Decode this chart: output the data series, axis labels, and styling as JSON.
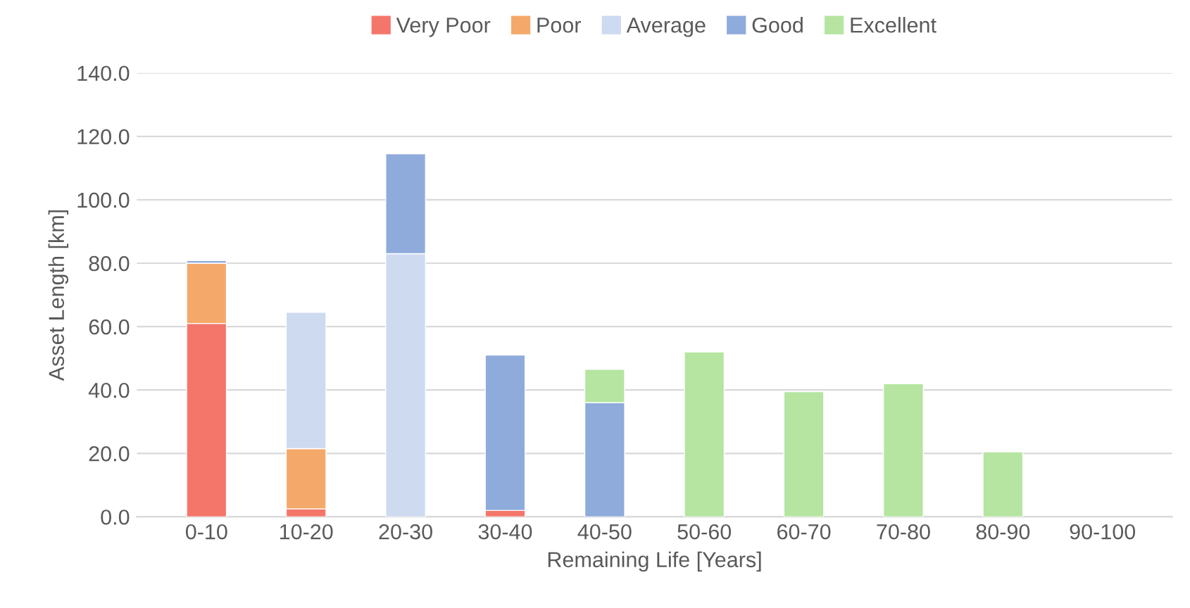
{
  "chart_data": {
    "type": "bar",
    "stacked": true,
    "xlabel": "Remaining Life [Years]",
    "ylabel": "Asset Length [km]",
    "categories": [
      "0-10",
      "10-20",
      "20-30",
      "30-40",
      "40-50",
      "50-60",
      "60-70",
      "70-80",
      "80-90",
      "90-100"
    ],
    "series": [
      {
        "name": "Very Poor",
        "color": "#f4766a",
        "values": [
          61,
          2.5,
          null,
          2,
          null,
          null,
          null,
          null,
          null,
          null
        ]
      },
      {
        "name": "Poor",
        "color": "#f4a96a",
        "values": [
          19,
          19,
          null,
          null,
          null,
          null,
          null,
          null,
          null,
          null
        ]
      },
      {
        "name": "Average",
        "color": "#cddaf0",
        "values": [
          null,
          43,
          83,
          null,
          null,
          null,
          null,
          null,
          null,
          null
        ]
      },
      {
        "name": "Good",
        "color": "#8eabdb",
        "values": [
          0.8,
          null,
          31.5,
          49,
          36,
          null,
          null,
          null,
          null,
          null
        ]
      },
      {
        "name": "Excellent",
        "color": "#b5e5a1",
        "values": [
          null,
          null,
          null,
          null,
          10.5,
          52,
          39.5,
          42,
          20.5,
          null
        ]
      }
    ],
    "ylim": [
      0,
      140
    ],
    "yticks": [
      {
        "value": 0,
        "label": "0.0"
      },
      {
        "value": 20,
        "label": "20.0"
      },
      {
        "value": 40,
        "label": "40.0"
      },
      {
        "value": 60,
        "label": "60.0"
      },
      {
        "value": 80,
        "label": "80.0"
      },
      {
        "value": 100,
        "label": "100.0"
      },
      {
        "value": 120,
        "label": "120.0"
      },
      {
        "value": 140,
        "label": "140.0"
      }
    ],
    "grid": "y",
    "legend": "top"
  }
}
